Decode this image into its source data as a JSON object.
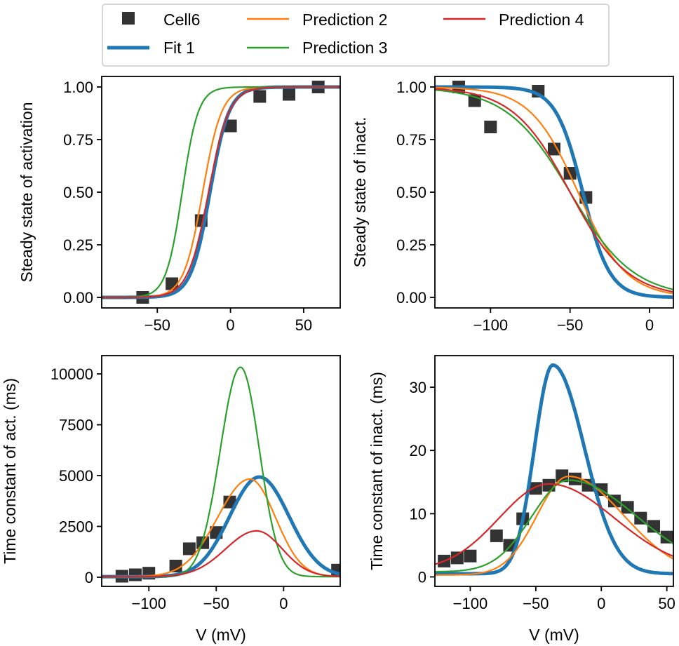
{
  "legend": {
    "items": [
      {
        "label": "Cell6",
        "color": "#333333",
        "kind": "marker"
      },
      {
        "label": "Fit 1",
        "color": "#1f77b4",
        "kind": "thick-line"
      },
      {
        "label": "Prediction 2",
        "color": "#ff7f0e",
        "kind": "line"
      },
      {
        "label": "Prediction 3",
        "color": "#2ca02c",
        "kind": "line"
      },
      {
        "label": "Prediction 4",
        "color": "#d62728",
        "kind": "line"
      }
    ]
  },
  "chart_data": [
    {
      "type": "line",
      "ylabel": "Steady state of activation",
      "xlabel": "",
      "xlim": [
        -88,
        75
      ],
      "ylim": [
        -0.05,
        1.05
      ],
      "xticks": [
        -50,
        0,
        50
      ],
      "yticks": [
        0.0,
        0.25,
        0.5,
        0.75,
        1.0
      ],
      "ytick_labels": [
        "0.00",
        "0.25",
        "0.50",
        "0.75",
        "1.00"
      ],
      "scatter": {
        "name": "Cell6",
        "x": [
          -60,
          -40,
          -20,
          0,
          20,
          40,
          60
        ],
        "y": [
          0.0,
          0.065,
          0.365,
          0.815,
          0.955,
          0.965,
          1.0
        ]
      },
      "series": [
        {
          "name": "Fit 1",
          "sigmoid": {
            "v_half": -14,
            "k": 6.5
          }
        },
        {
          "name": "Prediction 2",
          "sigmoid": {
            "v_half": -19,
            "k": 6.5
          }
        },
        {
          "name": "Prediction 3",
          "sigmoid": {
            "v_half": -33,
            "k": 5.5
          }
        },
        {
          "name": "Prediction 4",
          "sigmoid": {
            "v_half": -15,
            "k": 7
          }
        }
      ]
    },
    {
      "type": "line",
      "ylabel": "Steady state of inact.",
      "xlabel": "",
      "xlim": [
        -135,
        15
      ],
      "ylim": [
        -0.05,
        1.05
      ],
      "xticks": [
        -100,
        -50,
        0
      ],
      "yticks": [
        0.0,
        0.25,
        0.5,
        0.75,
        1.0
      ],
      "ytick_labels": [
        "0.00",
        "0.25",
        "0.50",
        "0.75",
        "1.00"
      ],
      "scatter": {
        "name": "Cell6",
        "x": [
          -120,
          -110,
          -100,
          -70,
          -60,
          -50,
          -40
        ],
        "y": [
          1.0,
          0.935,
          0.81,
          0.98,
          0.705,
          0.59,
          0.475
        ]
      },
      "series": [
        {
          "name": "Fit 1",
          "sigmoid": {
            "v_half": -42,
            "k": -8.5
          }
        },
        {
          "name": "Prediction 2",
          "sigmoid": {
            "v_half": -45,
            "k": -15
          }
        },
        {
          "name": "Prediction 3",
          "sigmoid": {
            "v_half": -50,
            "k": -20
          }
        },
        {
          "name": "Prediction 4",
          "sigmoid": {
            "v_half": -50,
            "k": -18
          }
        }
      ]
    },
    {
      "type": "line",
      "ylabel": "Time constant of act. (ms)",
      "xlabel": "V (mV)",
      "xlim": [
        -135,
        42
      ],
      "ylim": [
        -450,
        10900
      ],
      "xticks": [
        -100,
        -50,
        0
      ],
      "yticks": [
        0,
        2500,
        5000,
        7500,
        10000
      ],
      "ytick_labels": [
        "0",
        "2500",
        "5000",
        "7500",
        "10000"
      ],
      "scatter": {
        "name": "Cell6",
        "x": [
          -120,
          -110,
          -100,
          -80,
          -70,
          -60,
          -50,
          -40,
          40
        ],
        "y": [
          50,
          120,
          200,
          550,
          1400,
          1700,
          2200,
          3700,
          350
        ]
      },
      "series": [
        {
          "name": "Fit 1",
          "bell": {
            "base": 30,
            "amp": 4900,
            "center": -18,
            "w1": 22,
            "w2": 22
          }
        },
        {
          "name": "Prediction 2",
          "bell": {
            "base": 30,
            "amp": 4800,
            "center": -25,
            "w1": 24,
            "w2": 19
          }
        },
        {
          "name": "Prediction 3",
          "bell": {
            "base": 30,
            "amp": 10300,
            "center": -32,
            "w1": 15,
            "w2": 14
          }
        },
        {
          "name": "Prediction 4",
          "bell": {
            "base": 30,
            "amp": 2250,
            "center": -20,
            "w1": 23,
            "w2": 19
          }
        }
      ]
    },
    {
      "type": "line",
      "ylabel": "Time constant of inact. (ms)",
      "xlabel": "V (mV)",
      "xlim": [
        -127,
        55
      ],
      "ylim": [
        -1.5,
        35
      ],
      "xticks": [
        -100,
        -50,
        0,
        50
      ],
      "yticks": [
        0,
        10,
        20,
        30
      ],
      "ytick_labels": [
        "0",
        "10",
        "20",
        "30"
      ],
      "scatter": {
        "name": "Cell6",
        "x": [
          -120,
          -110,
          -100,
          -80,
          -70,
          -60,
          -50,
          -40,
          -30,
          -20,
          -10,
          0,
          10,
          20,
          30,
          40,
          50
        ],
        "y": [
          2.5,
          3.0,
          3.3,
          6.5,
          5.0,
          9.2,
          14.0,
          14.5,
          16.0,
          15.5,
          14.5,
          13.8,
          12.0,
          11.0,
          9.3,
          8.0,
          6.3
        ]
      },
      "series": [
        {
          "name": "Fit 1",
          "bell": {
            "base": 0.5,
            "amp": 33.0,
            "center": -37,
            "w1": 14,
            "w2": 24
          }
        },
        {
          "name": "Prediction 2",
          "bell": {
            "base": 0.3,
            "amp": 15.6,
            "center": -25,
            "w1": 24,
            "w2": 42
          }
        },
        {
          "name": "Prediction 3",
          "bell": {
            "base": 0.8,
            "amp": 14.5,
            "center": -25,
            "w1": 28,
            "w2": 52
          }
        },
        {
          "name": "Prediction 4",
          "bell": {
            "base": 1.0,
            "amp": 13.7,
            "center": -40,
            "w1": 38,
            "w2": 50
          }
        }
      ]
    }
  ]
}
